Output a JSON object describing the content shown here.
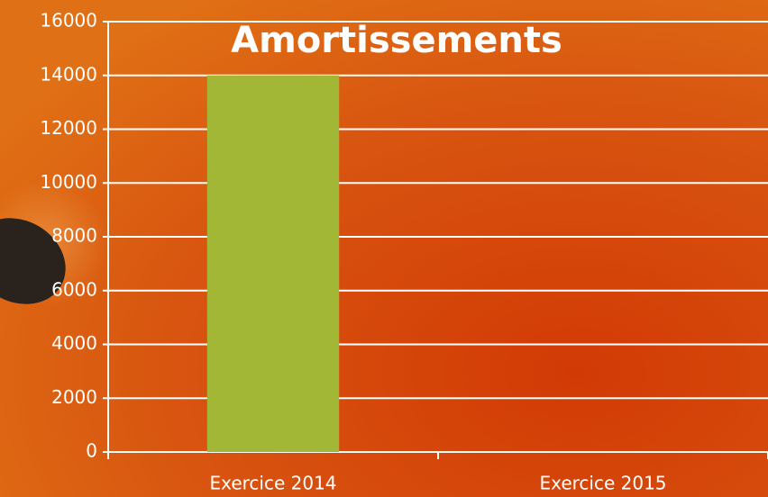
{
  "chart_data": {
    "type": "bar",
    "title": "Amortissements",
    "categories": [
      "Exercice 2014",
      "Exercice 2015"
    ],
    "values": [
      14000,
      0
    ],
    "color": "#a2b736",
    "ylim": [
      0,
      16000
    ],
    "yticks": [
      0,
      2000,
      4000,
      6000,
      8000,
      10000,
      12000,
      14000,
      16000
    ],
    "grid": true
  }
}
